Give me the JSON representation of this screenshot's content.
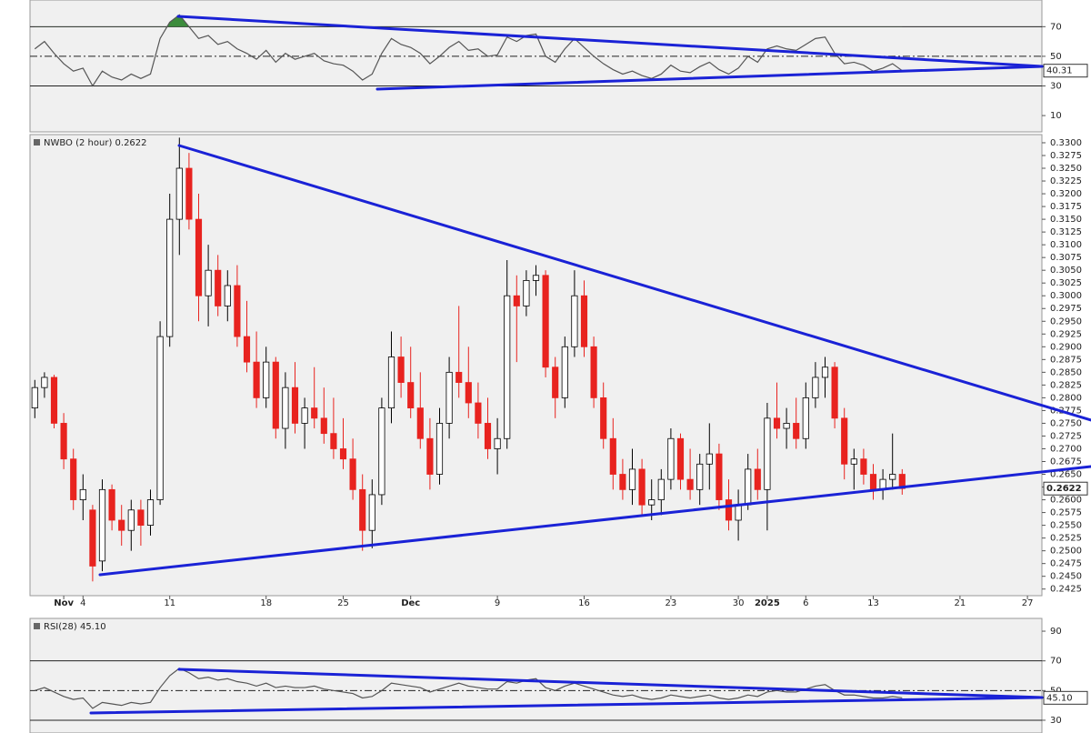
{
  "chart_data": [
    {
      "type": "line",
      "color": "#555555",
      "overbought_fill": "#3c8c3c",
      "values": [
        55,
        60,
        52,
        45,
        40,
        42,
        30,
        40,
        36,
        34,
        38,
        35,
        38,
        62,
        73,
        78,
        70,
        62,
        64,
        58,
        60,
        55,
        52,
        48,
        54,
        46,
        52,
        48,
        50,
        52,
        47,
        45,
        44,
        40,
        34,
        38,
        52,
        62,
        58,
        56,
        52,
        45,
        50,
        56,
        60,
        54,
        55,
        50,
        51,
        63,
        60,
        64,
        65,
        50,
        46,
        55,
        62,
        56,
        50,
        45,
        41,
        38,
        40,
        37,
        35,
        38,
        44,
        40,
        39,
        43,
        46,
        41,
        38,
        42,
        50,
        46,
        55,
        57,
        55,
        54,
        58,
        62,
        63,
        52,
        45,
        46,
        44,
        40,
        42,
        45,
        40.31
      ],
      "ylim": [
        -1,
        88
      ],
      "yticks": [
        70,
        50,
        30,
        10
      ],
      "hlines": [
        {
          "value": 70,
          "dash": false
        },
        {
          "value": 50,
          "dash": true
        },
        {
          "value": 30,
          "dash": false
        }
      ]
    },
    {
      "type": "candlestick",
      "title": "NWBO (2 hour) 0.2622",
      "up_color": "#ffffff",
      "down_color": "#e8231f",
      "categories": [
        null,
        null,
        null,
        "Nov",
        null,
        "4",
        null,
        null,
        null,
        null,
        null,
        null,
        null,
        null,
        "11",
        null,
        null,
        null,
        null,
        null,
        null,
        null,
        null,
        null,
        "18",
        null,
        null,
        null,
        null,
        null,
        null,
        null,
        "25",
        null,
        null,
        null,
        null,
        null,
        null,
        "Dec",
        null,
        null,
        null,
        null,
        null,
        null,
        null,
        null,
        "9",
        null,
        null,
        null,
        null,
        null,
        null,
        null,
        null,
        "16",
        null,
        null,
        null,
        null,
        null,
        null,
        null,
        null,
        "23",
        null,
        null,
        null,
        null,
        null,
        null,
        "30",
        null,
        null,
        "2025",
        null,
        null,
        null,
        "6",
        null,
        null,
        null,
        null,
        null,
        null,
        "13",
        null,
        null,
        null,
        null,
        null,
        null,
        null,
        null,
        "21",
        null,
        null,
        null,
        null,
        null,
        null,
        "27",
        null
      ],
      "open": [
        0.278,
        0.282,
        0.284,
        0.275,
        0.268,
        0.26,
        0.258,
        0.248,
        0.262,
        0.256,
        0.254,
        0.258,
        0.255,
        0.26,
        0.292,
        0.315,
        0.325,
        0.315,
        0.3,
        0.305,
        0.298,
        0.302,
        0.292,
        0.287,
        0.28,
        0.287,
        0.274,
        0.282,
        0.275,
        0.278,
        0.276,
        0.273,
        0.27,
        0.268,
        0.262,
        0.254,
        0.261,
        0.278,
        0.288,
        0.283,
        0.278,
        0.272,
        0.265,
        0.275,
        0.285,
        0.283,
        0.279,
        0.275,
        0.27,
        0.272,
        0.3,
        0.298,
        0.303,
        0.304,
        0.286,
        0.28,
        0.29,
        0.3,
        0.29,
        0.28,
        0.272,
        0.265,
        0.262,
        0.266,
        0.259,
        0.26,
        0.264,
        0.272,
        0.264,
        0.262,
        0.267,
        0.269,
        0.26,
        0.256,
        0.259,
        0.266,
        0.262,
        0.276,
        0.274,
        0.275,
        0.272,
        0.28,
        0.284,
        0.286,
        0.276,
        0.267,
        0.268,
        0.265,
        0.262,
        0.264,
        0.265,
        null,
        null,
        null,
        null,
        null,
        null,
        null,
        null,
        null,
        null,
        null,
        null,
        null,
        null
      ],
      "high": [
        0.2835,
        0.285,
        0.2845,
        0.277,
        0.27,
        0.265,
        0.259,
        0.264,
        0.263,
        0.259,
        0.26,
        0.26,
        0.262,
        0.295,
        0.32,
        0.331,
        0.328,
        0.32,
        0.31,
        0.308,
        0.305,
        0.306,
        0.299,
        0.293,
        0.29,
        0.288,
        0.285,
        0.287,
        0.28,
        0.286,
        0.282,
        0.28,
        0.276,
        0.272,
        0.265,
        0.264,
        0.28,
        0.293,
        0.292,
        0.29,
        0.285,
        0.276,
        0.278,
        0.288,
        0.298,
        0.29,
        0.283,
        0.28,
        0.276,
        0.307,
        0.304,
        0.305,
        0.306,
        0.305,
        0.288,
        0.292,
        0.305,
        0.303,
        0.292,
        0.283,
        0.276,
        0.268,
        0.27,
        0.268,
        0.264,
        0.266,
        0.274,
        0.273,
        0.27,
        0.269,
        0.275,
        0.271,
        0.264,
        0.262,
        0.269,
        0.27,
        0.279,
        0.283,
        0.278,
        0.28,
        0.283,
        0.287,
        0.288,
        0.287,
        0.278,
        0.27,
        0.27,
        0.267,
        0.266,
        0.273,
        0.266,
        null,
        null,
        null,
        null,
        null,
        null,
        null,
        null,
        null,
        null,
        null,
        null,
        null,
        null
      ],
      "low": [
        0.276,
        0.28,
        0.274,
        0.266,
        0.258,
        0.256,
        0.244,
        0.246,
        0.254,
        0.251,
        0.25,
        0.251,
        0.253,
        0.259,
        0.29,
        0.308,
        0.313,
        0.295,
        0.294,
        0.296,
        0.295,
        0.29,
        0.285,
        0.278,
        0.278,
        0.272,
        0.27,
        0.273,
        0.27,
        0.274,
        0.271,
        0.268,
        0.266,
        0.26,
        0.25,
        0.2505,
        0.259,
        0.275,
        0.28,
        0.276,
        0.27,
        0.262,
        0.263,
        0.272,
        0.28,
        0.276,
        0.272,
        0.268,
        0.265,
        0.27,
        0.287,
        0.296,
        0.3,
        0.284,
        0.276,
        0.278,
        0.288,
        0.288,
        0.278,
        0.27,
        0.262,
        0.26,
        0.259,
        0.257,
        0.256,
        0.257,
        0.262,
        0.262,
        0.26,
        0.259,
        0.262,
        0.258,
        0.254,
        0.252,
        0.258,
        0.26,
        0.254,
        0.272,
        0.27,
        0.27,
        0.27,
        0.278,
        0.28,
        0.274,
        0.264,
        0.262,
        0.263,
        0.26,
        0.26,
        0.262,
        0.261,
        null,
        null,
        null,
        null,
        null,
        null,
        null,
        null,
        null,
        null,
        null,
        null,
        null,
        null
      ],
      "close": [
        0.282,
        0.284,
        0.275,
        0.268,
        0.26,
        0.262,
        0.247,
        0.262,
        0.256,
        0.254,
        0.258,
        0.255,
        0.26,
        0.292,
        0.315,
        0.325,
        0.315,
        0.3,
        0.305,
        0.298,
        0.302,
        0.292,
        0.287,
        0.28,
        0.287,
        0.274,
        0.282,
        0.275,
        0.278,
        0.276,
        0.273,
        0.27,
        0.268,
        0.262,
        0.254,
        0.261,
        0.278,
        0.288,
        0.283,
        0.278,
        0.272,
        0.265,
        0.275,
        0.285,
        0.283,
        0.279,
        0.275,
        0.27,
        0.272,
        0.3,
        0.298,
        0.303,
        0.304,
        0.286,
        0.28,
        0.29,
        0.3,
        0.29,
        0.28,
        0.272,
        0.265,
        0.262,
        0.266,
        0.259,
        0.26,
        0.264,
        0.272,
        0.264,
        0.262,
        0.267,
        0.269,
        0.26,
        0.256,
        0.259,
        0.266,
        0.262,
        0.276,
        0.274,
        0.275,
        0.272,
        0.28,
        0.284,
        0.286,
        0.276,
        0.267,
        0.268,
        0.265,
        0.262,
        0.264,
        0.265,
        0.2622,
        null,
        null,
        null,
        null,
        null,
        null,
        null,
        null,
        null,
        null,
        null,
        null,
        null,
        null
      ],
      "ylim": [
        0.2412,
        0.3316
      ],
      "yticks": [
        {
          "value": 0.33,
          "label": "0.3300"
        },
        {
          "value": 0.3275,
          "label": "0.3275"
        },
        {
          "value": 0.325,
          "label": "0.3250"
        },
        {
          "value": 0.3225,
          "label": "0.3225"
        },
        {
          "value": 0.32,
          "label": "0.3200"
        },
        {
          "value": 0.3175,
          "label": "0.3175"
        },
        {
          "value": 0.315,
          "label": "0.3150"
        },
        {
          "value": 0.3125,
          "label": "0.3125"
        },
        {
          "value": 0.31,
          "label": "0.3100"
        },
        {
          "value": 0.3075,
          "label": "0.3075"
        },
        {
          "value": 0.305,
          "label": "0.3050"
        },
        {
          "value": 0.3025,
          "label": "0.3025"
        },
        {
          "value": 0.3,
          "label": "0.3000"
        },
        {
          "value": 0.2975,
          "label": "0.2975"
        },
        {
          "value": 0.295,
          "label": "0.2950"
        },
        {
          "value": 0.2925,
          "label": "0.2925"
        },
        {
          "value": 0.29,
          "label": "0.2900"
        },
        {
          "value": 0.2875,
          "label": "0.2875"
        },
        {
          "value": 0.285,
          "label": "0.2850"
        },
        {
          "value": 0.2825,
          "label": "0.2825"
        },
        {
          "value": 0.28,
          "label": "0.2800"
        },
        {
          "value": 0.2775,
          "label": "0.2775"
        },
        {
          "value": 0.275,
          "label": "0.2750"
        },
        {
          "value": 0.2725,
          "label": "0.2725"
        },
        {
          "value": 0.27,
          "label": "0.2700"
        },
        {
          "value": 0.2675,
          "label": "0.2675"
        },
        {
          "value": 0.265,
          "label": "0.2650"
        },
        {
          "value": 0.2625,
          "label": "0.2625"
        },
        {
          "value": 0.26,
          "label": "0.2600"
        },
        {
          "value": 0.2575,
          "label": "0.2575"
        },
        {
          "value": 0.255,
          "label": "0.2550"
        },
        {
          "value": 0.2525,
          "label": "0.2525"
        },
        {
          "value": 0.25,
          "label": "0.2500"
        },
        {
          "value": 0.2475,
          "label": "0.2475"
        },
        {
          "value": 0.245,
          "label": "0.2450"
        },
        {
          "value": 0.2425,
          "label": "0.2425"
        }
      ]
    },
    {
      "type": "line",
      "title": "RSI(28) 45.10",
      "color": "#555555",
      "values": [
        50,
        52,
        49,
        46,
        44,
        45,
        38,
        42,
        41,
        40,
        42,
        41,
        42,
        52,
        60,
        65,
        62,
        58,
        59,
        57,
        58,
        56,
        55,
        53,
        55,
        52,
        53,
        52,
        52,
        53,
        51,
        50,
        49,
        48,
        45,
        46,
        50,
        55,
        54,
        53,
        52,
        49,
        51,
        53,
        55,
        53,
        52,
        51,
        51,
        56,
        55,
        57,
        58,
        52,
        50,
        53,
        55,
        53,
        51,
        49,
        47,
        46,
        47,
        45,
        44,
        45,
        47,
        46,
        45,
        46,
        47,
        45,
        44,
        45,
        47,
        46,
        49,
        50,
        49,
        49,
        51,
        53,
        54,
        50,
        47,
        47,
        46,
        45,
        45,
        46,
        45.1
      ],
      "value_labels": [
        null,
        null,
        null,
        null,
        null,
        null,
        null,
        null,
        null,
        null,
        null,
        null,
        null,
        null,
        null,
        null,
        null,
        null,
        null,
        null,
        null,
        null,
        null,
        null,
        null,
        null,
        null,
        null,
        null,
        null,
        null,
        null,
        null,
        null,
        null,
        null,
        null,
        null,
        null,
        null,
        null,
        null,
        null,
        null,
        null,
        null,
        null,
        null,
        null,
        null,
        null,
        null,
        null,
        null,
        null,
        null,
        null,
        null,
        null,
        null,
        null,
        null,
        null,
        null,
        null,
        null,
        null,
        null,
        null,
        null,
        null,
        null,
        null,
        null,
        null,
        null,
        null,
        null,
        null,
        null,
        null,
        null,
        null,
        null,
        null,
        null,
        null,
        null,
        null,
        null,
        "45.10"
      ],
      "ylim": [
        21.4,
        98.6
      ],
      "yticks": [
        90,
        70,
        50,
        30
      ],
      "hlines": [
        {
          "value": 70,
          "dash": false
        },
        {
          "value": 50,
          "dash": true
        },
        {
          "value": 30,
          "dash": false
        }
      ]
    }
  ]
}
